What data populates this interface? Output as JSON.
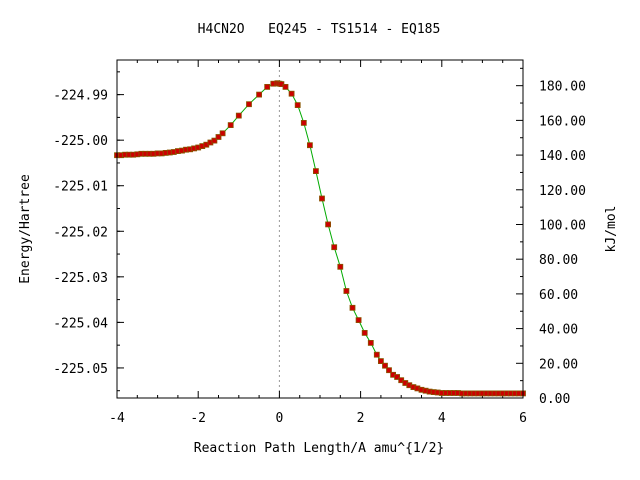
{
  "chart_data": {
    "type": "line",
    "title": "H4CN2O   EQ245 - TS1514 - EQ185",
    "xlabel": "Reaction Path Length/A amu^{1/2}",
    "ylabel": "Energy/Hartree",
    "y2label": "kJ/mol",
    "xlim": [
      -4,
      6
    ],
    "ylim": [
      -225.0566,
      -224.9824
    ],
    "y2lim": [
      0,
      194.8
    ],
    "xticks": [
      -4,
      -2,
      0,
      2,
      4,
      6
    ],
    "xtick_labels": [
      "-4",
      "-2",
      "0",
      "2",
      "4",
      "6"
    ],
    "yticks": [
      -224.99,
      -225.0,
      -225.01,
      -225.02,
      -225.03,
      -225.04,
      -225.05
    ],
    "ytick_labels": [
      "-224.99",
      "-225.00",
      "-225.01",
      "-225.02",
      "-225.03",
      "-225.04",
      "-225.05"
    ],
    "y2ticks": [
      0,
      20,
      40,
      60,
      80,
      100,
      120,
      140,
      160,
      180
    ],
    "y2tick_labels": [
      "0.00",
      "20.00",
      "40.00",
      "60.00",
      "80.00",
      "100.00",
      "120.00",
      "140.00",
      "160.00",
      "180.00"
    ],
    "ts_x": 0,
    "grid": false,
    "line_color": "#00aa00",
    "marker_color": "#cc0000",
    "marker_edge_color": "#885500",
    "vline_color": "#999999",
    "series": [
      {
        "x": [
          -4.0,
          -3.9,
          -3.8,
          -3.7,
          -3.6,
          -3.5,
          -3.4,
          -3.3,
          -3.2,
          -3.1,
          -3.0,
          -2.9,
          -2.8,
          -2.7,
          -2.6,
          -2.5,
          -2.4,
          -2.3,
          -2.2,
          -2.1,
          -2.0,
          -1.9,
          -1.8,
          -1.7,
          -1.6,
          -1.5,
          -1.4,
          -1.2,
          -1.0,
          -0.75,
          -0.5,
          -0.3,
          -0.15,
          -0.05,
          0.0,
          0.05,
          0.15,
          0.3,
          0.45,
          0.6,
          0.75,
          0.9,
          1.05,
          1.2,
          1.35,
          1.5,
          1.65,
          1.8,
          1.95,
          2.1,
          2.25,
          2.4,
          2.5,
          2.6,
          2.7,
          2.8,
          2.9,
          3.0,
          3.1,
          3.2,
          3.3,
          3.4,
          3.5,
          3.6,
          3.7,
          3.8,
          3.9,
          4.0,
          4.1,
          4.2,
          4.3,
          4.4,
          4.5,
          4.6,
          4.7,
          4.8,
          4.9,
          5.0,
          5.1,
          5.2,
          5.3,
          5.4,
          5.5,
          5.6,
          5.7,
          5.8,
          5.9,
          6.0
        ],
        "y": [
          -225.0033,
          -225.0033,
          -225.0032,
          -225.0032,
          -225.0032,
          -225.0031,
          -225.003,
          -225.003,
          -225.003,
          -225.003,
          -225.0029,
          -225.0029,
          -225.0028,
          -225.0027,
          -225.0026,
          -225.0024,
          -225.0023,
          -225.0021,
          -225.002,
          -225.0018,
          -225.0016,
          -225.0013,
          -225.001,
          -225.0005,
          -225.0001,
          -224.9993,
          -224.9985,
          -224.9967,
          -224.9946,
          -224.9921,
          -224.99,
          -224.9883,
          -224.9876,
          -224.9875,
          -224.9876,
          -224.9877,
          -224.9883,
          -224.9898,
          -224.9923,
          -224.9962,
          -225.0011,
          -225.0068,
          -225.0128,
          -225.0185,
          -225.0235,
          -225.0278,
          -225.0331,
          -225.0368,
          -225.0395,
          -225.0423,
          -225.0445,
          -225.0471,
          -225.0485,
          -225.0495,
          -225.0505,
          -225.0515,
          -225.052,
          -225.0527,
          -225.0533,
          -225.0538,
          -225.0542,
          -225.0545,
          -225.0548,
          -225.055,
          -225.0552,
          -225.0553,
          -225.0554,
          -225.0555,
          -225.0555,
          -225.0555,
          -225.0555,
          -225.0555,
          -225.0556,
          -225.0556,
          -225.0556,
          -225.0556,
          -225.0556,
          -225.0556,
          -225.0556,
          -225.0556,
          -225.0556,
          -225.0556,
          -225.0556,
          -225.0556,
          -225.0556,
          -225.0556,
          -225.0556,
          -225.0556
        ]
      }
    ]
  }
}
